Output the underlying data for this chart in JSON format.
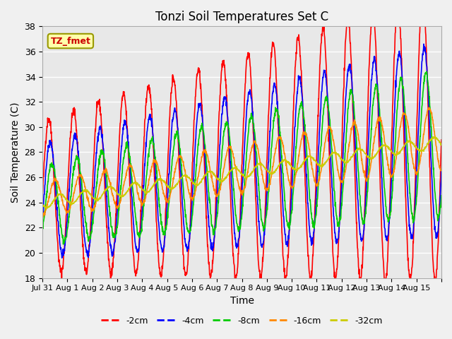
{
  "title": "Tonzi Soil Temperatures Set C",
  "xlabel": "Time",
  "ylabel": "Soil Temperature (C)",
  "ylim": [
    18,
    38
  ],
  "line_colors": [
    "#ff0000",
    "#0000ff",
    "#00cc00",
    "#ff8800",
    "#cccc00"
  ],
  "line_labels": [
    "-2cm",
    "-4cm",
    "-8cm",
    "-16cm",
    "-32cm"
  ],
  "xtick_labels": [
    "Jul 31",
    "Aug 1",
    "Aug 2",
    "Aug 3",
    "Aug 4",
    "Aug 5",
    "Aug 6",
    "Aug 7",
    "Aug 8",
    "Aug 9",
    "Aug 10",
    "Aug 11",
    "Aug 12",
    "Aug 13",
    "Aug 14",
    "Aug 15"
  ],
  "annotation_text": "TZ_fmet",
  "annotation_color": "#cc0000",
  "annotation_bg": "#ffffaa",
  "annotation_border": "#999900",
  "fig_bg_color": "#f0f0f0",
  "plot_bg_color": "#e8e8e8",
  "grid_color": "#ffffff"
}
